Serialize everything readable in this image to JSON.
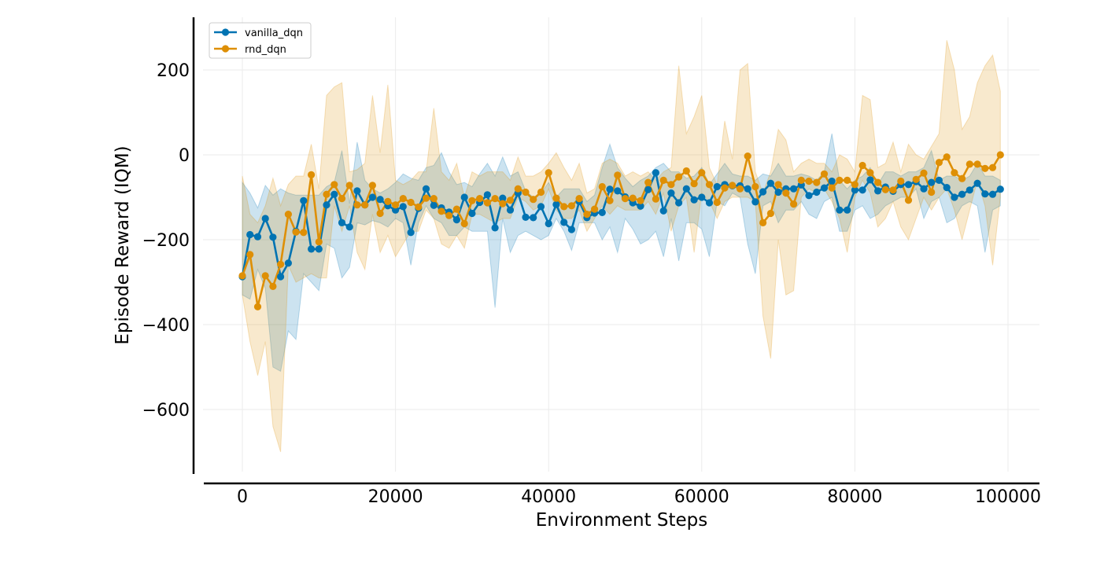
{
  "chart_data": {
    "type": "line",
    "xlabel": "Environment Steps",
    "ylabel": "Episode Reward (IQM)",
    "xlim": [
      -5000,
      104000
    ],
    "ylim": [
      -750,
      325
    ],
    "xticks": [
      0,
      20000,
      40000,
      60000,
      80000,
      100000
    ],
    "xtick_labels": [
      "0",
      "20000",
      "40000",
      "60000",
      "80000",
      "100000"
    ],
    "yticks": [
      200,
      0,
      -200,
      -400,
      -600
    ],
    "ytick_labels": [
      "200",
      "0",
      "−200",
      "−400",
      "−600"
    ],
    "grid": true,
    "legend_position": "top-left",
    "x": [
      0,
      1000,
      2000,
      3000,
      4000,
      5000,
      6000,
      7000,
      8000,
      9000,
      10000,
      11000,
      12000,
      13000,
      14000,
      15000,
      16000,
      17000,
      18000,
      19000,
      20000,
      21000,
      22000,
      23000,
      24000,
      25000,
      26000,
      27000,
      28000,
      29000,
      30000,
      31000,
      32000,
      33000,
      34000,
      35000,
      36000,
      37000,
      38000,
      39000,
      40000,
      41000,
      42000,
      43000,
      44000,
      45000,
      46000,
      47000,
      48000,
      49000,
      50000,
      51000,
      52000,
      53000,
      54000,
      55000,
      56000,
      57000,
      58000,
      59000,
      60000,
      61000,
      62000,
      63000,
      64000,
      65000,
      66000,
      67000,
      68000,
      69000,
      70000,
      71000,
      72000,
      73000,
      74000,
      75000,
      76000,
      77000,
      78000,
      79000,
      80000,
      81000,
      82000,
      83000,
      84000,
      85000,
      86000,
      87000,
      88000,
      89000,
      90000,
      91000,
      92000,
      93000,
      94000,
      95000,
      96000,
      97000,
      98000,
      99000
    ],
    "series": [
      {
        "name": "vanilla_dqn",
        "color": "#0173b2",
        "values": [
          -287,
          -188,
          -193,
          -150,
          -194,
          -287,
          -255,
          -180,
          -108,
          -222,
          -222,
          -118,
          -93,
          -160,
          -170,
          -85,
          -118,
          -100,
          -105,
          -120,
          -130,
          -122,
          -183,
          -126,
          -80,
          -119,
          -125,
          -135,
          -153,
          -100,
          -138,
          -112,
          -94,
          -172,
          -102,
          -130,
          -90,
          -147,
          -148,
          -122,
          -162,
          -117,
          -159,
          -176,
          -110,
          -148,
          -137,
          -136,
          -81,
          -85,
          -99,
          -113,
          -121,
          -82,
          -42,
          -132,
          -90,
          -113,
          -80,
          -106,
          -100,
          -113,
          -75,
          -70,
          -73,
          -73,
          -80,
          -111,
          -87,
          -67,
          -88,
          -80,
          -80,
          -71,
          -96,
          -88,
          -78,
          -62,
          -130,
          -130,
          -83,
          -83,
          -59,
          -85,
          -76,
          -86,
          -70,
          -70,
          -63,
          -80,
          -65,
          -60,
          -77,
          -100,
          -93,
          -83,
          -67,
          -92,
          -93,
          -81
        ],
        "upper": [
          -65,
          -90,
          -125,
          -72,
          -95,
          -80,
          -90,
          -95,
          -95,
          -95,
          -95,
          -75,
          -65,
          10,
          -115,
          30,
          -60,
          -80,
          -90,
          -80,
          -65,
          -45,
          -55,
          -60,
          -30,
          -25,
          5,
          -40,
          -70,
          -65,
          -75,
          -45,
          -20,
          -50,
          -5,
          -50,
          -40,
          -85,
          -100,
          -90,
          -65,
          -100,
          -80,
          -80,
          -80,
          -110,
          -95,
          -30,
          25,
          -30,
          -55,
          -75,
          -60,
          -50,
          -30,
          -20,
          -40,
          -40,
          -55,
          -50,
          -30,
          -70,
          -45,
          -20,
          -45,
          -50,
          -50,
          -60,
          -45,
          -50,
          -20,
          -50,
          -50,
          -45,
          -50,
          -60,
          -40,
          50,
          -60,
          -80,
          -60,
          -50,
          -30,
          -70,
          -40,
          -40,
          -50,
          -40,
          -40,
          -30,
          10,
          -60,
          -50,
          -50,
          -60,
          -50,
          -20,
          -50,
          -50,
          -60
        ],
        "lower": [
          -330,
          -340,
          -270,
          -315,
          -500,
          -510,
          -415,
          -435,
          -280,
          -300,
          -320,
          -210,
          -220,
          -290,
          -265,
          -160,
          -165,
          -155,
          -160,
          -170,
          -150,
          -160,
          -260,
          -160,
          -120,
          -150,
          -160,
          -190,
          -190,
          -170,
          -180,
          -180,
          -180,
          -360,
          -150,
          -230,
          -190,
          -180,
          -190,
          -200,
          -190,
          -150,
          -180,
          -225,
          -160,
          -160,
          -160,
          -200,
          -170,
          -230,
          -150,
          -175,
          -210,
          -200,
          -180,
          -240,
          -150,
          -250,
          -160,
          -160,
          -175,
          -240,
          -110,
          -120,
          -90,
          -100,
          -210,
          -280,
          -120,
          -110,
          -160,
          -130,
          -130,
          -110,
          -140,
          -150,
          -110,
          -100,
          -180,
          -180,
          -130,
          -120,
          -150,
          -140,
          -120,
          -110,
          -100,
          -100,
          -80,
          -150,
          -110,
          -100,
          -160,
          -150,
          -120,
          -110,
          -120,
          -230,
          -130,
          -120
        ]
      },
      {
        "name": "rnd_dqn",
        "color": "#de8f05",
        "values": [
          -285,
          -235,
          -358,
          -285,
          -310,
          -258,
          -140,
          -182,
          -183,
          -47,
          -205,
          -93,
          -70,
          -103,
          -72,
          -118,
          -118,
          -72,
          -138,
          -110,
          -118,
          -103,
          -112,
          -123,
          -102,
          -103,
          -133,
          -143,
          -128,
          -162,
          -108,
          -103,
          -113,
          -103,
          -115,
          -107,
          -80,
          -88,
          -105,
          -88,
          -42,
          -102,
          -122,
          -120,
          -103,
          -140,
          -128,
          -75,
          -108,
          -48,
          -103,
          -102,
          -108,
          -65,
          -104,
          -60,
          -70,
          -52,
          -38,
          -68,
          -42,
          -70,
          -112,
          -78,
          -72,
          -80,
          -3,
          -75,
          -160,
          -138,
          -70,
          -90,
          -116,
          -60,
          -62,
          -65,
          -45,
          -78,
          -60,
          -60,
          -70,
          -25,
          -42,
          -65,
          -82,
          -83,
          -62,
          -107,
          -58,
          -43,
          -88,
          -18,
          -5,
          -42,
          -56,
          -22,
          -22,
          -32,
          -30,
          0
        ],
        "upper": [
          -50,
          -140,
          -160,
          -120,
          -55,
          -120,
          -70,
          -50,
          -50,
          25,
          -80,
          140,
          160,
          170,
          -40,
          -35,
          -20,
          140,
          5,
          165,
          -60,
          -70,
          -60,
          -40,
          -40,
          110,
          -40,
          -60,
          -20,
          -100,
          -40,
          -50,
          -40,
          -40,
          -40,
          -60,
          -5,
          -50,
          -50,
          -40,
          -20,
          5,
          -30,
          -60,
          -20,
          -90,
          -80,
          -20,
          -10,
          -20,
          -50,
          -40,
          -50,
          -40,
          -60,
          -40,
          -30,
          210,
          50,
          90,
          140,
          -30,
          -70,
          80,
          -10,
          200,
          215,
          -40,
          -90,
          -40,
          60,
          35,
          -40,
          -20,
          -10,
          -20,
          -20,
          -40,
          0,
          -10,
          -40,
          140,
          130,
          -30,
          -20,
          30,
          -40,
          25,
          0,
          -10,
          20,
          50,
          270,
          200,
          60,
          90,
          170,
          210,
          235,
          150
        ],
        "lower": [
          -330,
          -440,
          -520,
          -440,
          -640,
          -700,
          -260,
          -300,
          -290,
          -280,
          -290,
          -290,
          -120,
          -180,
          -120,
          -230,
          -270,
          -140,
          -230,
          -190,
          -240,
          -210,
          -180,
          -180,
          -130,
          -150,
          -210,
          -220,
          -190,
          -220,
          -140,
          -140,
          -150,
          -160,
          -150,
          -150,
          -100,
          -110,
          -130,
          -120,
          -80,
          -130,
          -150,
          -150,
          -130,
          -180,
          -150,
          -120,
          -140,
          -120,
          -130,
          -130,
          -130,
          -110,
          -140,
          -90,
          -180,
          -120,
          -100,
          -230,
          -90,
          -110,
          -150,
          -110,
          -100,
          -100,
          -100,
          -110,
          -380,
          -480,
          -200,
          -330,
          -320,
          -100,
          -80,
          -90,
          -80,
          -110,
          -150,
          -230,
          -100,
          -60,
          -90,
          -170,
          -150,
          -110,
          -170,
          -200,
          -150,
          -100,
          -130,
          -100,
          -80,
          -130,
          -200,
          -130,
          -60,
          -120,
          -260,
          -100
        ]
      }
    ]
  }
}
